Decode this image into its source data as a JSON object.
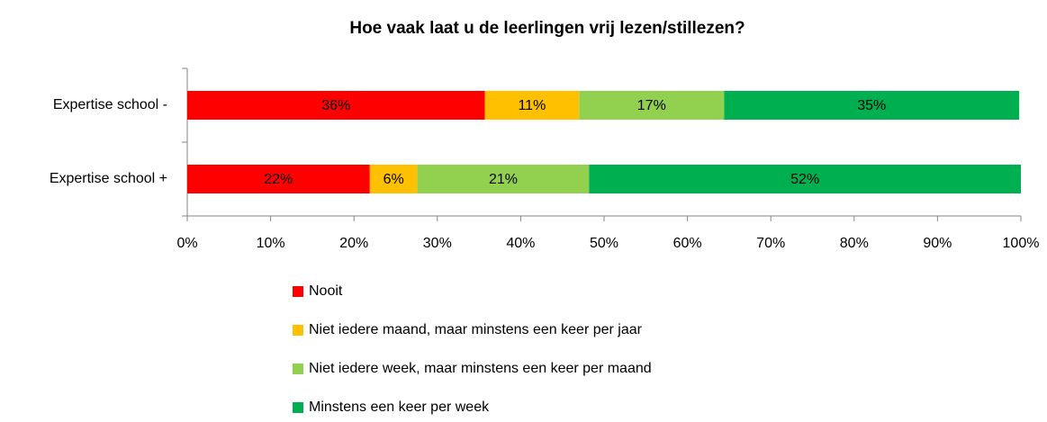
{
  "chart_data": {
    "type": "stacked-bar-horizontal",
    "title": "Hoe vaak laat u de leerlingen vrij lezen/stillezen?",
    "categories": [
      "Expertise school -",
      "Expertise school +"
    ],
    "series": [
      {
        "name": "Nooit",
        "color": "#ff0000",
        "values": [
          35.7,
          21.9
        ],
        "value_labels": [
          "36%",
          "22%"
        ]
      },
      {
        "name": "Niet iedere maand, maar minstens een keer per jaar",
        "color": "#ffc000",
        "values": [
          11.3,
          5.7
        ],
        "value_labels": [
          "11%",
          "6%"
        ]
      },
      {
        "name": "Niet iedere week, maar minstens een keer per maand",
        "color": "#92d050",
        "values": [
          17.4,
          20.6
        ],
        "value_labels": [
          "17%",
          "21%"
        ]
      },
      {
        "name": "Minstens een keer per week",
        "color": "#00b050",
        "values": [
          35.4,
          51.8
        ],
        "value_labels": [
          "35%",
          "52%"
        ]
      }
    ],
    "xlim": [
      0,
      100
    ],
    "xticks": [
      {
        "value": 0,
        "label": "0%"
      },
      {
        "value": 10,
        "label": "10%"
      },
      {
        "value": 20,
        "label": "20%"
      },
      {
        "value": 30,
        "label": "30%"
      },
      {
        "value": 40,
        "label": "40%"
      },
      {
        "value": 50,
        "label": "50%"
      },
      {
        "value": 60,
        "label": "60%"
      },
      {
        "value": 70,
        "label": "70%"
      },
      {
        "value": 80,
        "label": "80%"
      },
      {
        "value": 90,
        "label": "90%"
      },
      {
        "value": 100,
        "label": "100%"
      }
    ],
    "legend": "bottom"
  }
}
